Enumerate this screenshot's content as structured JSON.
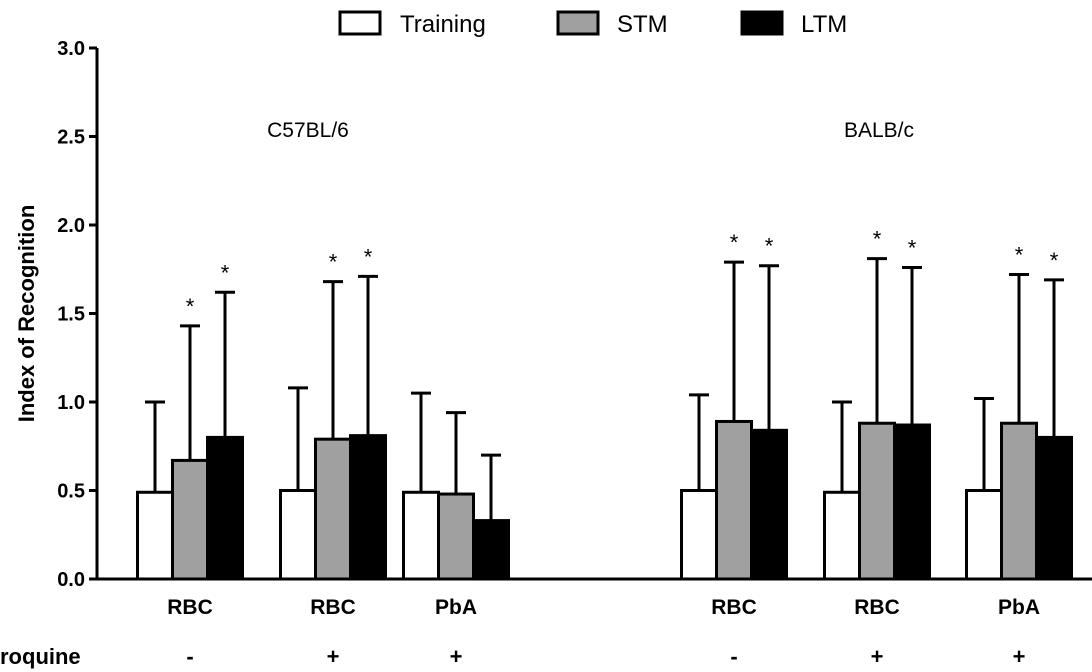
{
  "chart_data": {
    "type": "bar",
    "ylabel": "Index of Recognition",
    "ylim": [
      0,
      3.0
    ],
    "yticks": [
      "0.0",
      "0.5",
      "1.0",
      "1.5",
      "2.0",
      "2.5",
      "3.0"
    ],
    "ytick_values": [
      0,
      0.5,
      1.0,
      1.5,
      2.0,
      2.5,
      3.0
    ],
    "legend": {
      "placement": "top",
      "entries": [
        {
          "name": "Training",
          "color": "#ffffff"
        },
        {
          "name": "STM",
          "color": "#a0a0a0"
        },
        {
          "name": "LTM",
          "color": "#000000"
        }
      ]
    },
    "group_labels": [
      "C57BL/6",
      "BALB/c"
    ],
    "row_label": "roquine",
    "categories": [
      "RBC",
      "RBC",
      "PbA",
      "RBC",
      "RBC",
      "PbA"
    ],
    "treatment": [
      "-",
      "+",
      "+",
      "-",
      "+",
      "+"
    ],
    "series": [
      {
        "name": "Training",
        "values": [
          0.49,
          0.5,
          0.49,
          0.5,
          0.49,
          0.5
        ],
        "err": [
          1.0,
          1.08,
          1.05,
          1.04,
          1.0,
          1.02
        ],
        "sig": [
          false,
          false,
          false,
          false,
          false,
          false
        ]
      },
      {
        "name": "STM",
        "values": [
          0.67,
          0.79,
          0.48,
          0.89,
          0.88,
          0.88
        ],
        "err": [
          1.43,
          1.68,
          0.94,
          1.79,
          1.81,
          1.72
        ],
        "sig": [
          true,
          true,
          false,
          true,
          true,
          true
        ]
      },
      {
        "name": "LTM",
        "values": [
          0.8,
          0.81,
          0.33,
          0.84,
          0.87,
          0.8
        ],
        "err": [
          1.62,
          1.71,
          0.7,
          1.77,
          1.76,
          1.69
        ],
        "sig": [
          true,
          true,
          false,
          true,
          true,
          true
        ]
      }
    ],
    "sig_marker": "*",
    "grid": false
  }
}
